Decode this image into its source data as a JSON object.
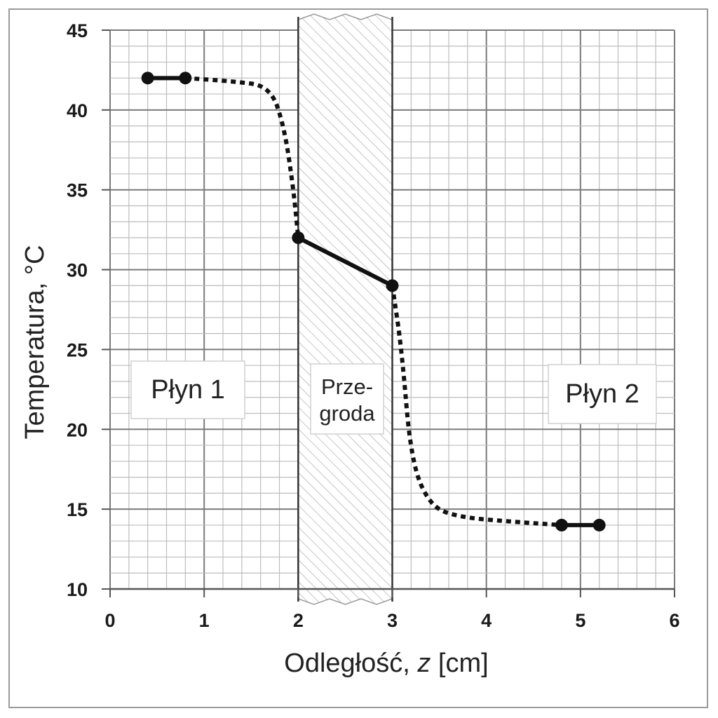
{
  "chart_data": {
    "type": "line",
    "xlabel_prefix": "Odległość, ",
    "xlabel_var": "z",
    "xlabel_suffix": " [cm]",
    "ylabel": "Temperatura, °C",
    "xlim": [
      0,
      6
    ],
    "ylim": [
      10,
      45
    ],
    "x_ticks": [
      "0",
      "1",
      "2",
      "3",
      "4",
      "5",
      "6"
    ],
    "y_ticks": [
      "10",
      "15",
      "20",
      "25",
      "30",
      "35",
      "40",
      "45"
    ],
    "grid": true,
    "wall_region": [
      2,
      3
    ],
    "regions": {
      "fluid1": "Płyn 1",
      "wall_line1": "Prze-",
      "wall_line2": "groda",
      "fluid2": "Płyn 2"
    },
    "series": [
      {
        "style": "solid",
        "marker": "circle",
        "x": [
          0.4,
          0.8
        ],
        "y": [
          42,
          42
        ]
      },
      {
        "style": "dotted",
        "x": [
          0.8,
          1.3,
          1.7,
          1.85,
          1.95,
          2.0
        ],
        "y": [
          42,
          41.8,
          41.5,
          39,
          35,
          32
        ]
      },
      {
        "style": "solid",
        "marker": "circle",
        "x": [
          2.0,
          3.0
        ],
        "y": [
          32,
          29
        ]
      },
      {
        "style": "dotted",
        "x": [
          3.0,
          3.1,
          3.2,
          3.4,
          3.7,
          4.3,
          4.8
        ],
        "y": [
          29,
          25,
          18,
          15.2,
          14.5,
          14.2,
          14
        ]
      },
      {
        "style": "solid",
        "marker": "circle",
        "x": [
          4.8,
          5.2
        ],
        "y": [
          14,
          14
        ]
      }
    ]
  }
}
